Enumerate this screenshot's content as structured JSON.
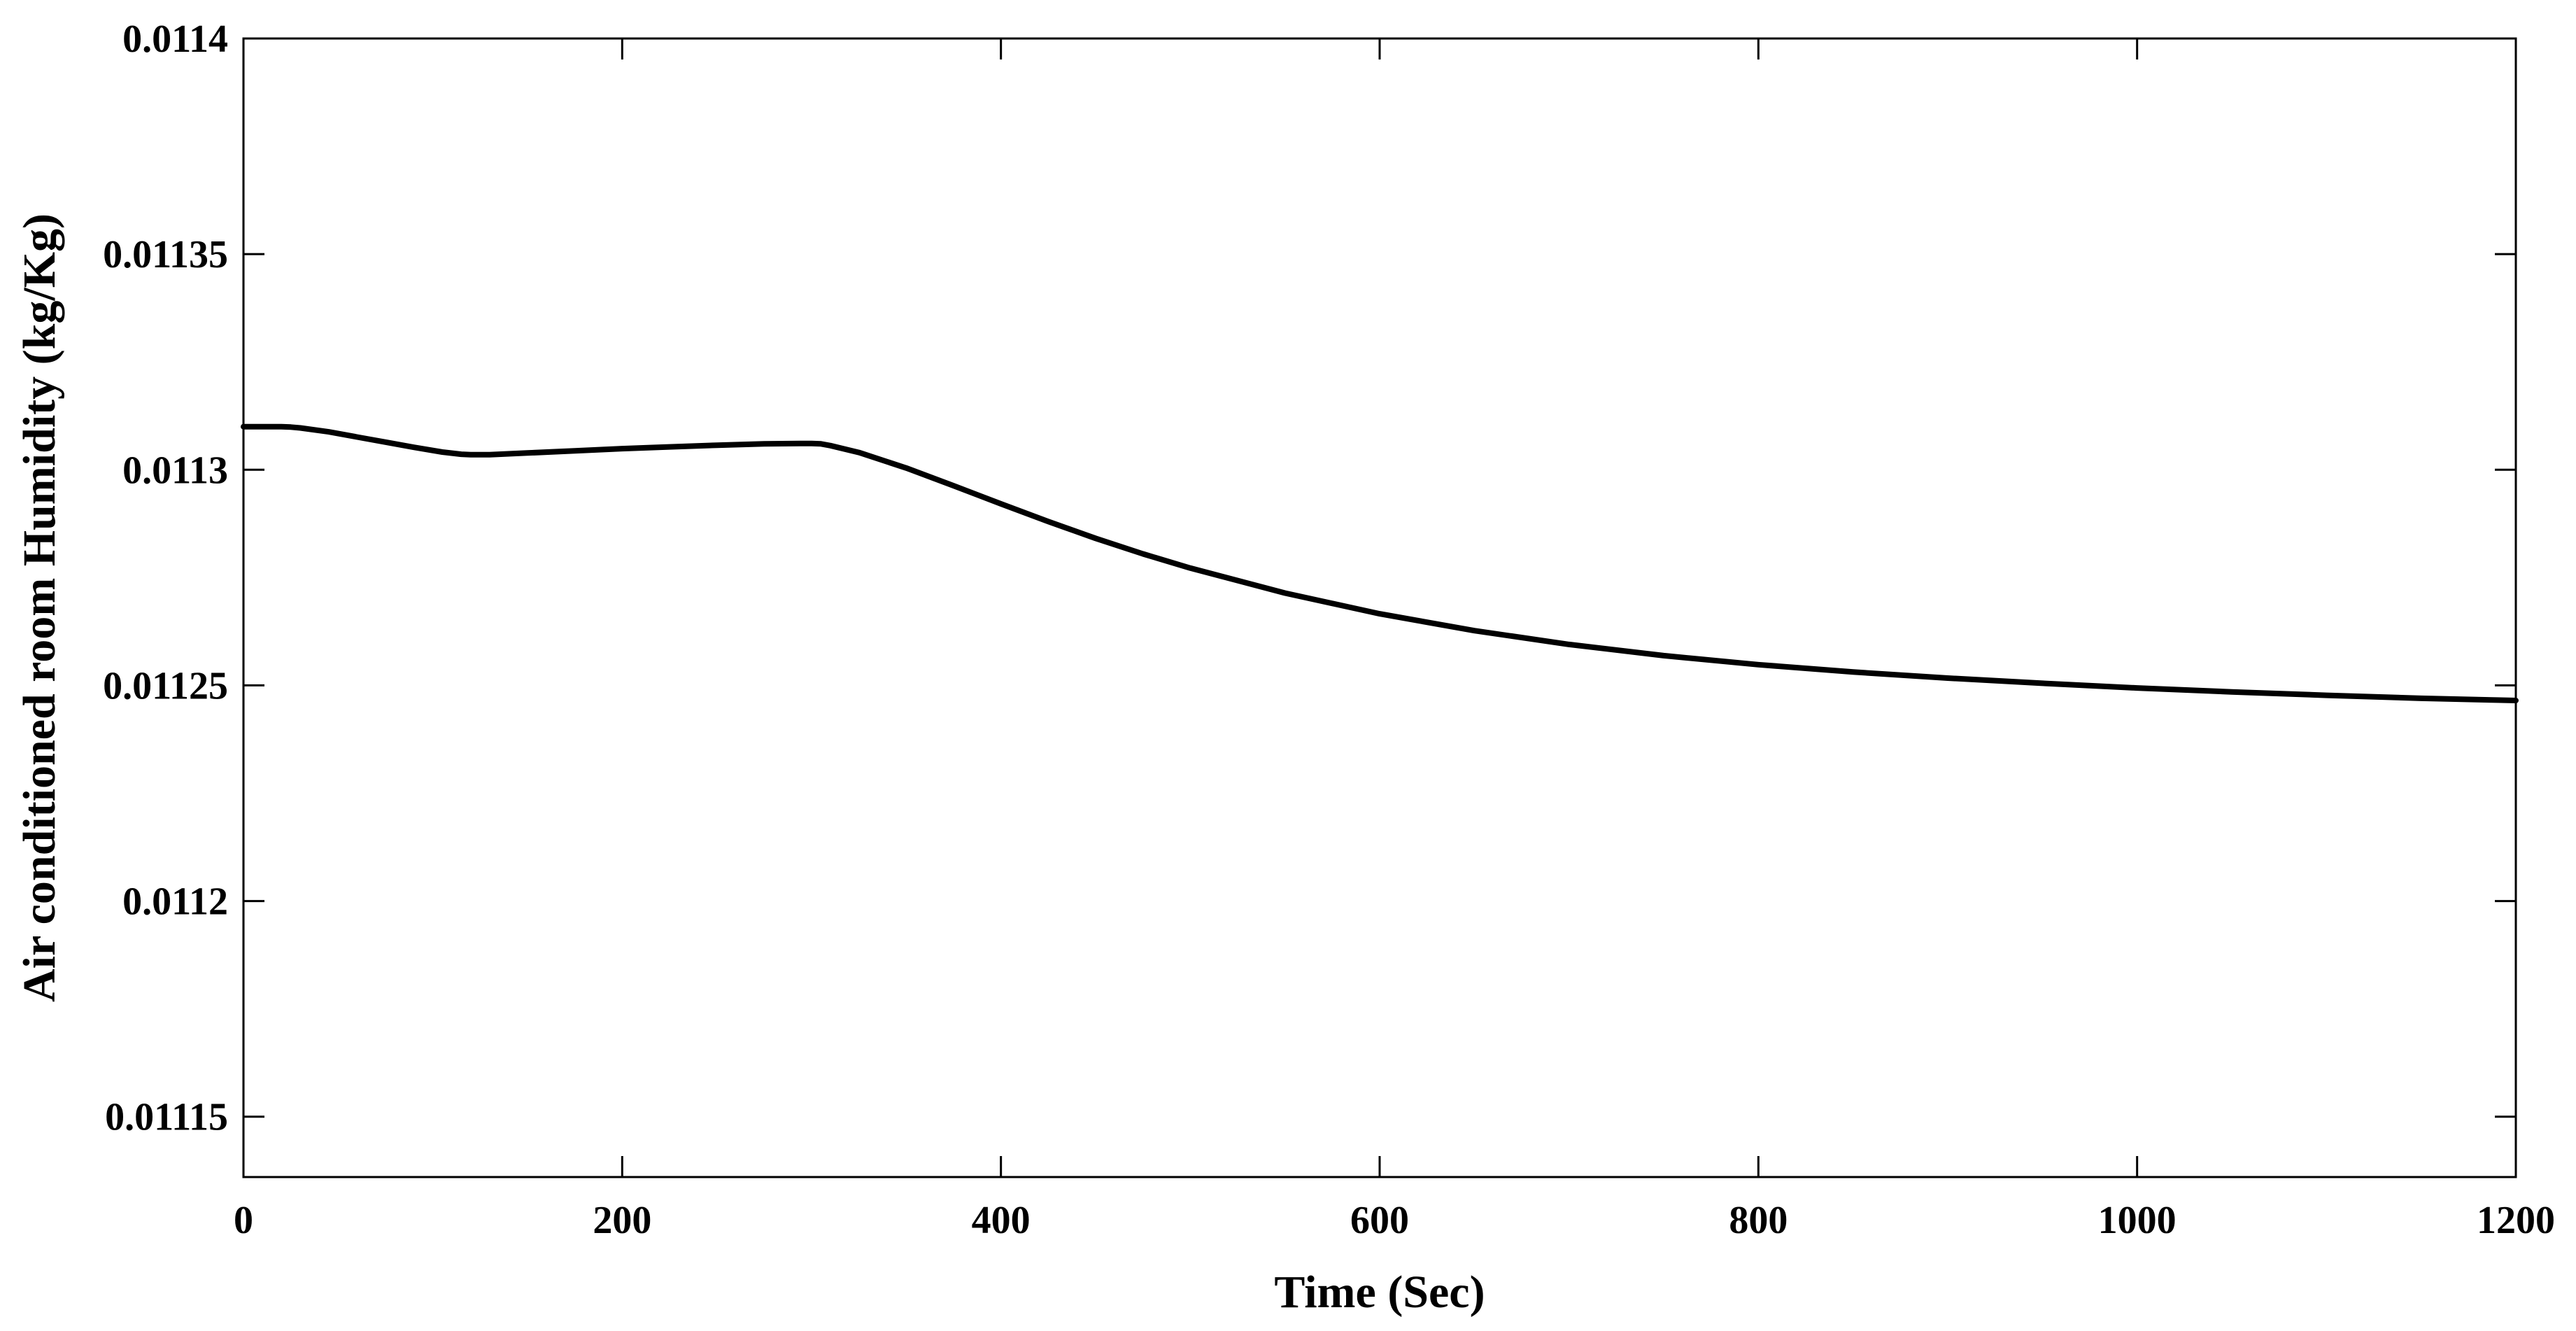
{
  "chart_data": {
    "type": "line",
    "title": "",
    "xlabel": "Time (Sec)",
    "ylabel": "Air conditioned room Humidity (kg/Kg)",
    "xlim": [
      0,
      1200
    ],
    "ylim": [
      0.011136,
      0.0114
    ],
    "xticks": [
      0,
      200,
      400,
      600,
      800,
      1000,
      1200
    ],
    "xtick_labels": [
      "0",
      "200",
      "400",
      "600",
      "800",
      "1000",
      "1200"
    ],
    "yticks": [
      0.0114,
      0.01135,
      0.0113,
      0.01125,
      0.0112,
      0.01115
    ],
    "ytick_labels": [
      "0.0114",
      "0.01135",
      "0.0113",
      "0.01125",
      "0.0112",
      "0.01115"
    ],
    "grid": false,
    "line_color": "#000000",
    "series": [
      {
        "x": [
          0,
          10,
          20,
          25,
          30,
          45,
          60,
          75,
          90,
          105,
          115,
          120,
          130,
          150,
          175,
          200,
          225,
          250,
          275,
          295,
          300,
          305,
          310,
          325,
          350,
          375,
          400,
          425,
          450,
          475,
          500,
          550,
          600,
          650,
          700,
          750,
          800,
          850,
          900,
          950,
          1000,
          1050,
          1100,
          1150,
          1190,
          1200
        ],
        "y": [
          0.01131,
          0.01131,
          0.01131,
          0.0113099,
          0.0113097,
          0.0113088,
          0.0113076,
          0.0113064,
          0.0113052,
          0.0113041,
          0.0113036,
          0.0113035,
          0.0113035,
          0.0113039,
          0.0113044,
          0.0113049,
          0.0113053,
          0.0113057,
          0.011306,
          0.0113061,
          0.0113061,
          0.011306,
          0.0113056,
          0.011304,
          0.0113004,
          0.0112963,
          0.0112921,
          0.011288,
          0.0112841,
          0.0112805,
          0.0112772,
          0.0112714,
          0.0112666,
          0.0112627,
          0.0112595,
          0.0112569,
          0.0112548,
          0.0112531,
          0.0112517,
          0.0112505,
          0.0112494,
          0.0112485,
          0.0112477,
          0.011247,
          0.0112466,
          0.0112465
        ]
      }
    ]
  }
}
